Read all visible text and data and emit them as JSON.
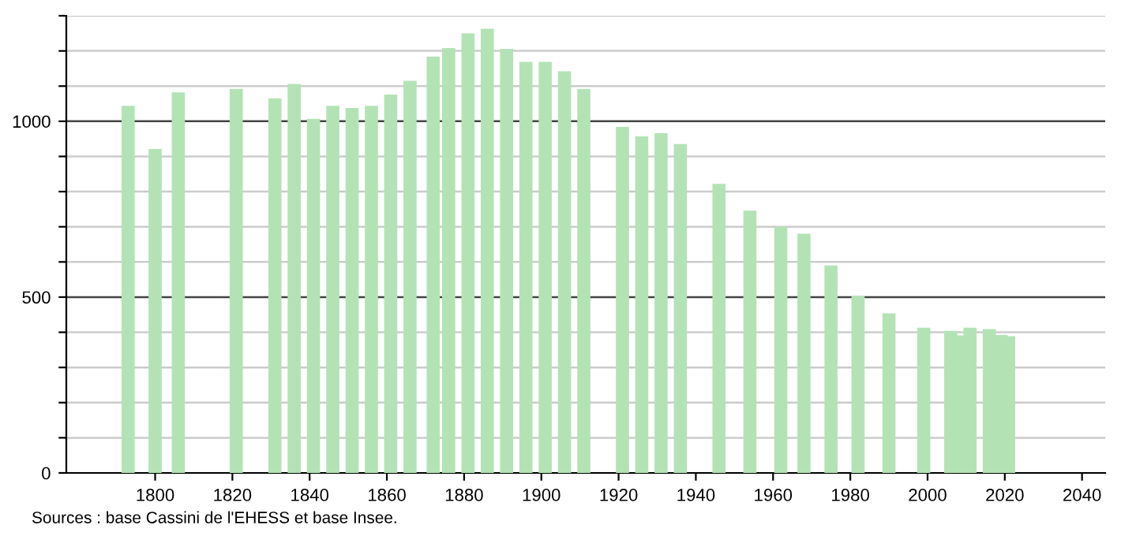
{
  "chart_data": {
    "type": "bar",
    "x": [
      1793,
      1800,
      1806,
      1821,
      1831,
      1836,
      1841,
      1846,
      1851,
      1856,
      1861,
      1866,
      1872,
      1876,
      1881,
      1886,
      1891,
      1896,
      1901,
      1906,
      1911,
      1921,
      1926,
      1931,
      1936,
      1946,
      1954,
      1962,
      1968,
      1975,
      1982,
      1990,
      1999,
      2006,
      2008,
      2011,
      2016,
      2019,
      2021
    ],
    "values": [
      1044,
      921,
      1082,
      1092,
      1065,
      1106,
      1007,
      1044,
      1038,
      1044,
      1076,
      1115,
      1184,
      1208,
      1250,
      1263,
      1206,
      1169,
      1169,
      1142,
      1092,
      984,
      957,
      966,
      935,
      822,
      746,
      700,
      680,
      590,
      503,
      454,
      413,
      404,
      391,
      413,
      409,
      392,
      389
    ],
    "color": "#b3e3b5",
    "xlim": [
      1777,
      2046
    ],
    "xticks": [
      1800,
      1820,
      1840,
      1860,
      1880,
      1900,
      1920,
      1940,
      1960,
      1980,
      2000,
      2020,
      2040
    ],
    "ylim": [
      0,
      1300
    ],
    "yticks": [
      0,
      {
        "value": 100,
        "label": null
      },
      {
        "value": 200,
        "label": null
      },
      {
        "value": 300,
        "label": null
      },
      {
        "value": 400,
        "label": null
      },
      500,
      {
        "value": 600,
        "label": null
      },
      {
        "value": 700,
        "label": null
      },
      {
        "value": 800,
        "label": null
      },
      {
        "value": 900,
        "label": null
      },
      1000,
      {
        "value": 1100,
        "label": null
      },
      {
        "value": 1200,
        "label": null
      },
      {
        "value": 1300,
        "label": null
      }
    ],
    "grid": "y",
    "annotations": [
      "Sources : base Cassini de l'EHESS et base Insee."
    ]
  }
}
